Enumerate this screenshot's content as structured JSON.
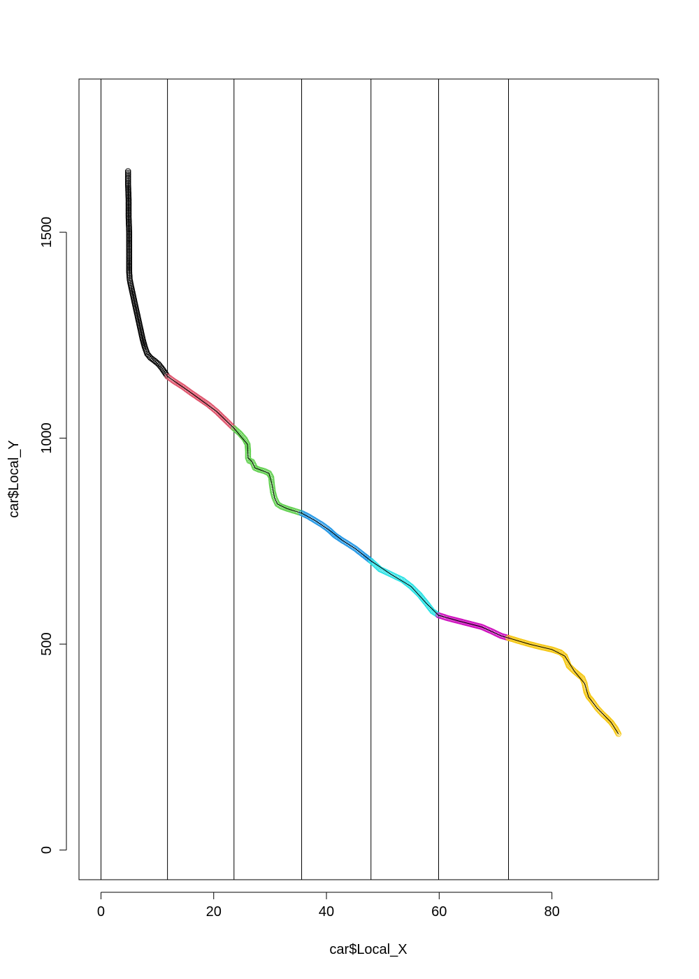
{
  "chart_data": {
    "type": "scatter",
    "title": "",
    "xlabel": "car$Local_X",
    "ylabel": "car$Local_Y",
    "xlim": [
      -3.9,
      98.9
    ],
    "ylim": [
      -72,
      1872
    ],
    "xticks": [
      0,
      20,
      40,
      60,
      80
    ],
    "yticks": [
      0,
      500,
      1000,
      1500
    ],
    "x_tick_labels": [
      "0",
      "20",
      "40",
      "60",
      "80"
    ],
    "y_tick_labels": [
      "0",
      "500",
      "1000",
      "1500"
    ],
    "vlines": [
      0,
      11.8,
      23.6,
      35.6,
      47.9,
      59.9,
      72.3
    ],
    "grid": false,
    "legend": "none",
    "series": [
      {
        "color": "#000000",
        "x": [
          4.8,
          4.8,
          4.9,
          4.9,
          5.0,
          5.0,
          5.0,
          5.0,
          5.1,
          5.4,
          5.8,
          6.2,
          6.6,
          7.0,
          7.4,
          7.8,
          8.2,
          8.8,
          9.5,
          10.2,
          10.8,
          11.3,
          11.8
        ],
        "y": [
          1648,
          1620,
          1580,
          1540,
          1500,
          1460,
          1430,
          1405,
          1385,
          1365,
          1340,
          1315,
          1290,
          1265,
          1240,
          1220,
          1205,
          1195,
          1188,
          1180,
          1170,
          1160,
          1150
        ]
      },
      {
        "color": "#DF536B",
        "x": [
          11.8,
          13.0,
          14.5,
          16.0,
          17.5,
          19.0,
          20.5,
          22.0,
          23.6
        ],
        "y": [
          1150,
          1138,
          1125,
          1110,
          1096,
          1082,
          1065,
          1045,
          1024
        ]
      },
      {
        "color": "#61D04F",
        "x": [
          23.6,
          24.6,
          25.5,
          26.0,
          26.1,
          26.1,
          26.3,
          26.8,
          27.1,
          27.3,
          28.0,
          29.0,
          29.8,
          30.2,
          30.3,
          30.5,
          30.8,
          31.3,
          32.0,
          33.0,
          34.2,
          35.6
        ],
        "y": [
          1024,
          1012,
          998,
          985,
          968,
          952,
          945,
          943,
          935,
          928,
          924,
          920,
          915,
          905,
          890,
          870,
          855,
          840,
          834,
          829,
          824,
          818
        ]
      },
      {
        "color": "#2297E6",
        "x": [
          35.6,
          36.8,
          38.0,
          39.2,
          40.4,
          41.5,
          42.8,
          44.0,
          45.2,
          46.5,
          47.9
        ],
        "y": [
          818,
          810,
          800,
          790,
          778,
          764,
          752,
          742,
          731,
          717,
          702
        ]
      },
      {
        "color": "#28E2E5",
        "x": [
          47.9,
          49.5,
          51.5,
          53.5,
          55.0,
          56.5,
          57.8,
          58.8,
          59.9
        ],
        "y": [
          702,
          682,
          669,
          656,
          640,
          620,
          598,
          580,
          570
        ]
      },
      {
        "color": "#CD0BBC",
        "x": [
          59.9,
          61.5,
          63.5,
          65.5,
          67.5,
          69.5,
          71.0,
          72.3
        ],
        "y": [
          570,
          563,
          556,
          549,
          542,
          530,
          520,
          515
        ]
      },
      {
        "color": "#F5C710",
        "x": [
          72.3,
          74.0,
          76.0,
          78.0,
          80.0,
          81.5,
          82.3,
          83.0,
          84.0,
          85.4,
          85.8,
          86.1,
          86.5,
          87.0,
          88.0,
          89.0,
          89.8,
          90.5,
          91.3,
          91.8
        ],
        "y": [
          515,
          508,
          500,
          493,
          487,
          480,
          471,
          447,
          434,
          418,
          404,
          384,
          372,
          364,
          345,
          330,
          320,
          310,
          295,
          282
        ]
      }
    ],
    "trace_line": {
      "color": "#000000",
      "x": [
        4.8,
        4.9,
        5.0,
        5.1,
        5.8,
        6.6,
        7.4,
        8.2,
        9.5,
        10.8,
        11.8,
        16.0,
        20.5,
        23.6,
        26.0,
        26.1,
        26.8,
        27.3,
        29.8,
        30.3,
        30.8,
        31.3,
        33.0,
        35.6,
        38.0,
        40.4,
        42.8,
        45.2,
        47.9,
        51.5,
        55.0,
        57.8,
        59.9,
        63.5,
        67.5,
        71.0,
        72.3,
        76.0,
        80.0,
        82.3,
        84.0,
        85.8,
        86.5,
        88.0,
        90.5,
        91.8
      ],
      "y": [
        1648,
        1580,
        1460,
        1385,
        1340,
        1290,
        1240,
        1205,
        1188,
        1170,
        1150,
        1110,
        1065,
        1024,
        985,
        952,
        943,
        928,
        915,
        890,
        855,
        840,
        829,
        818,
        800,
        778,
        752,
        731,
        702,
        669,
        640,
        598,
        570,
        556,
        542,
        520,
        515,
        500,
        487,
        471,
        434,
        404,
        372,
        345,
        310,
        282
      ]
    }
  }
}
